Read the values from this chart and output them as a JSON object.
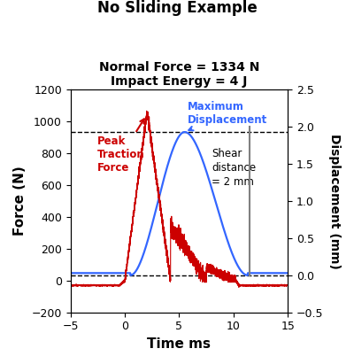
{
  "title": "No Sliding Example",
  "subtitle_line1": "Normal Force = 1334 N",
  "subtitle_line2": "Impact Energy = 4 J",
  "xlabel": "Time ms",
  "ylabel_left": "Force (N)",
  "ylabel_right": "Displacement (mm)",
  "xlim": [
    -5,
    15
  ],
  "ylim_left": [
    -200,
    1200
  ],
  "ylim_right": [
    -0.5,
    2.5
  ],
  "force_color": "#CC0000",
  "disp_color": "#3366FF",
  "shear_line_color": "#808080",
  "annotation_peak_text": "Peak\nTraction\nForce",
  "annotation_disp_text": "Maximum\nDisplacement",
  "annotation_shear_text": "Shear\ndistance\n= 2 mm",
  "background_color": "#ffffff",
  "xticks": [
    -5,
    0,
    5,
    10,
    15
  ],
  "yticks_left": [
    -200,
    0,
    200,
    400,
    600,
    800,
    1000,
    1200
  ],
  "yticks_right": [
    -0.5,
    0,
    0.5,
    1.0,
    1.5,
    2.0,
    2.5
  ]
}
